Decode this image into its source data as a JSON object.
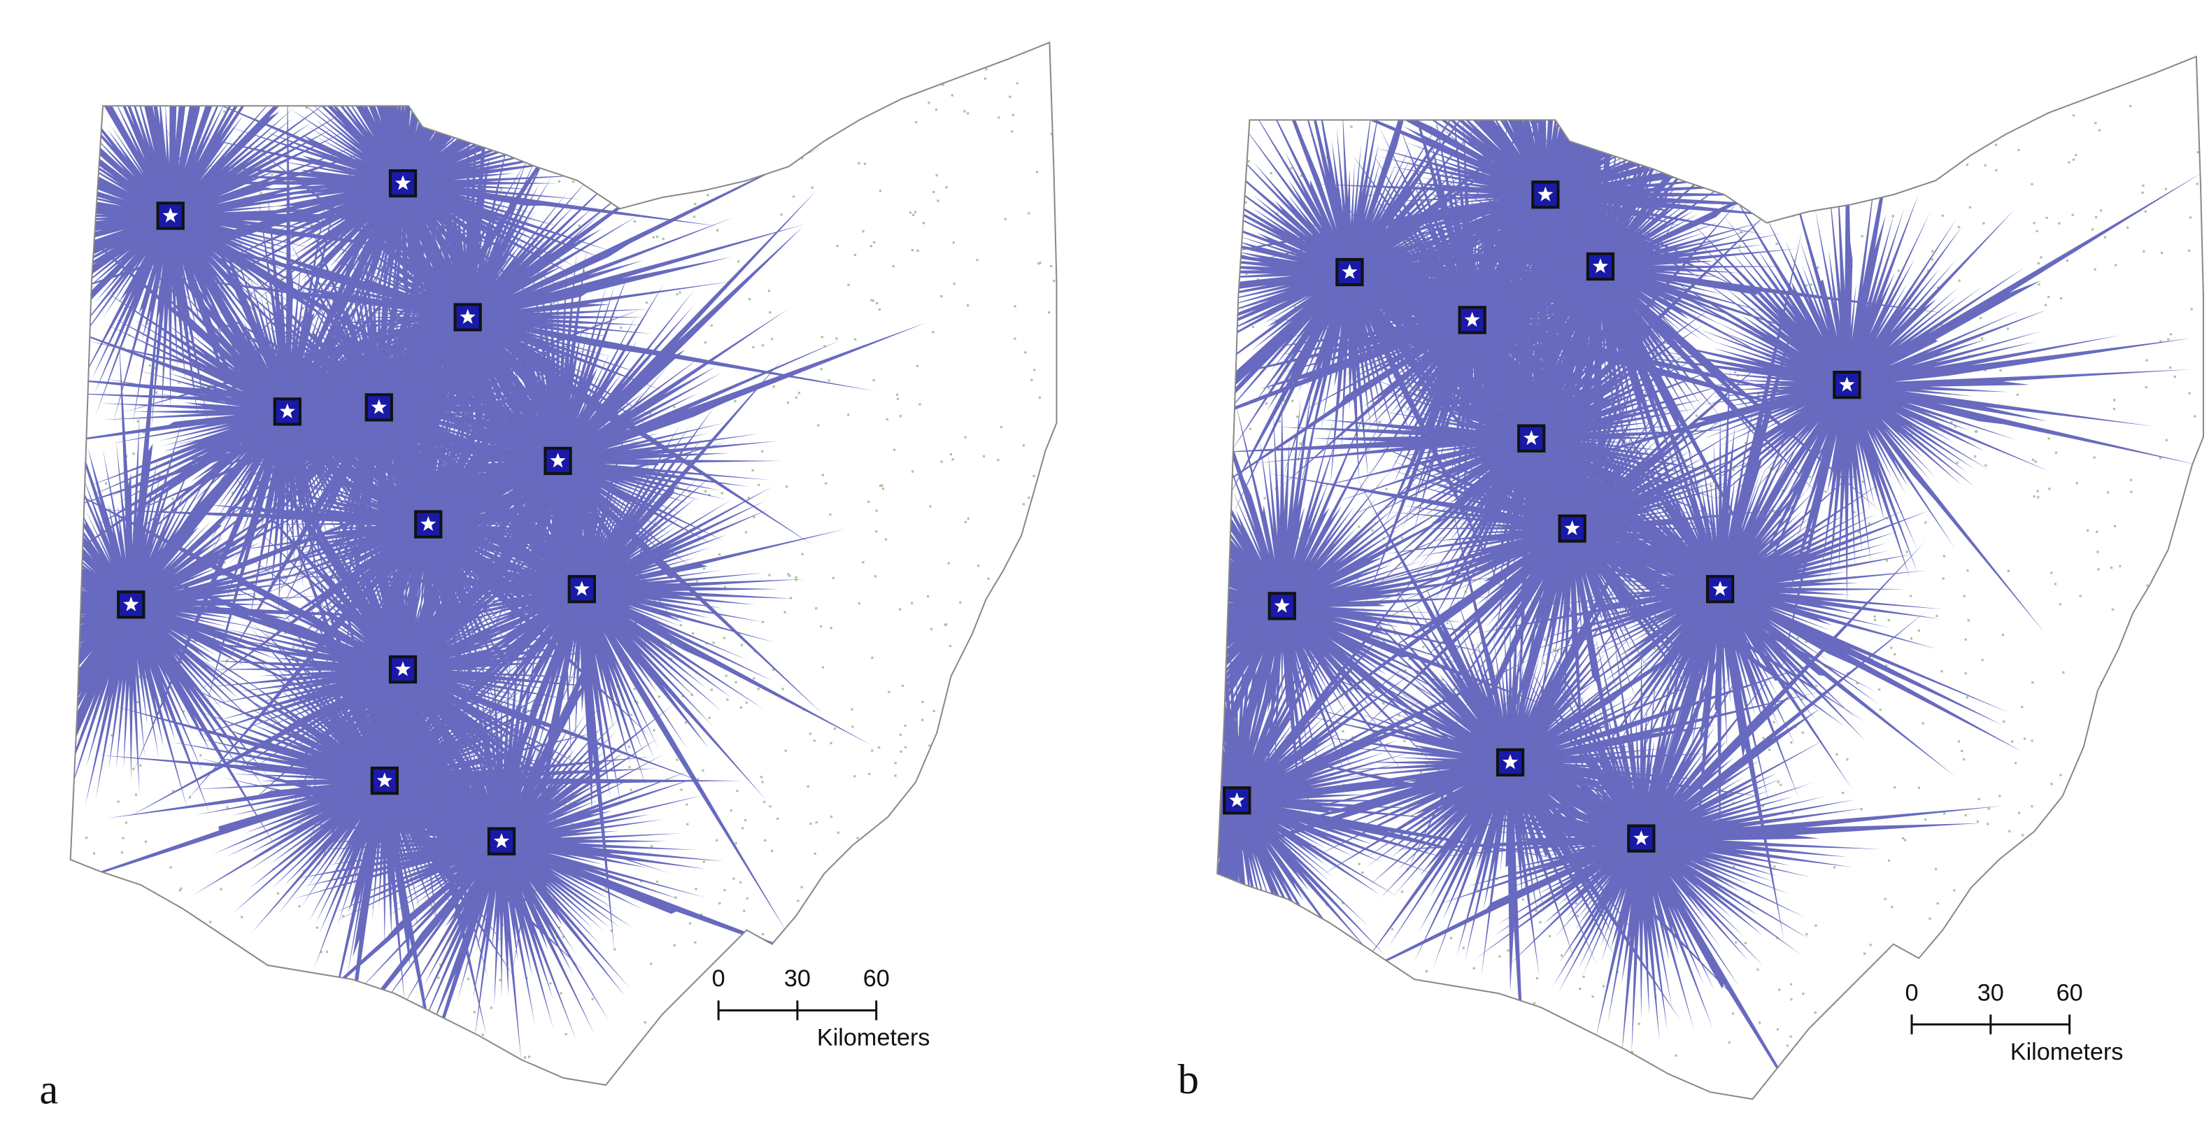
{
  "panels": [
    {
      "label": "a",
      "scale_ticks": [
        0,
        30,
        60
      ],
      "scale_unit": "Kilometers"
    },
    {
      "label": "b",
      "scale_ticks": [
        0,
        30,
        60
      ],
      "scale_unit": "Kilometers"
    }
  ]
}
